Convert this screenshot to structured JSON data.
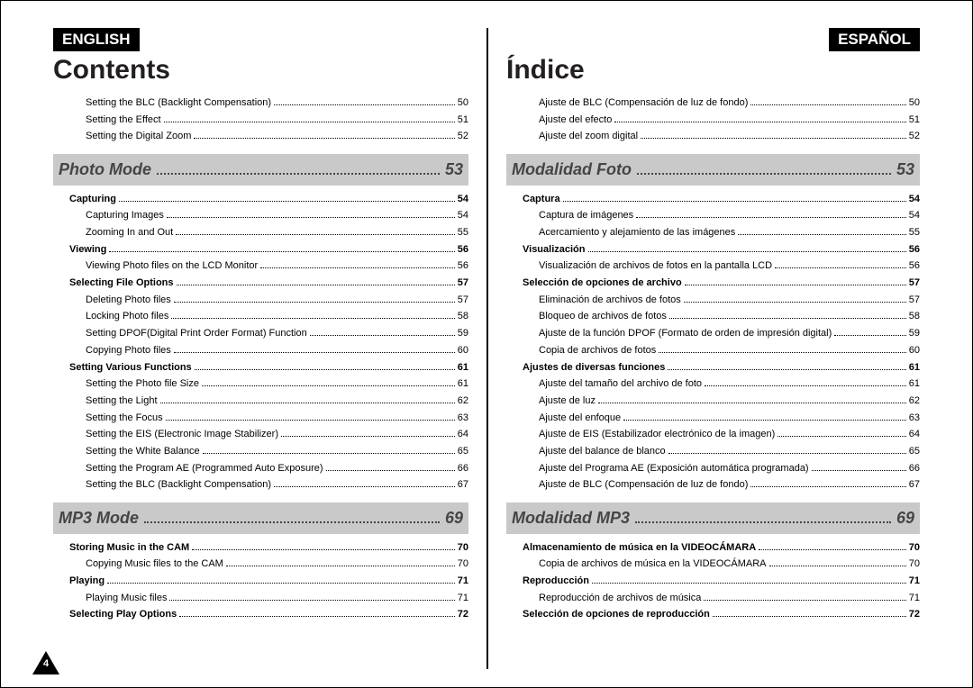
{
  "left": {
    "lang": "ENGLISH",
    "title": "Contents",
    "pageNumber": "4",
    "pre": [
      {
        "label": "Setting the BLC (Backlight Compensation)",
        "pg": "50",
        "lvl": 2
      },
      {
        "label": "Setting the Effect",
        "pg": "51",
        "lvl": 2
      },
      {
        "label": "Setting the Digital Zoom",
        "pg": "52",
        "lvl": 2
      }
    ],
    "sections": [
      {
        "title": "Photo Mode",
        "pg": "53",
        "items": [
          {
            "label": "Capturing",
            "pg": "54",
            "lvl": 1,
            "bold": true
          },
          {
            "label": "Capturing Images",
            "pg": "54",
            "lvl": 2
          },
          {
            "label": "Zooming In and Out",
            "pg": "55",
            "lvl": 2
          },
          {
            "label": "Viewing",
            "pg": "56",
            "lvl": 1,
            "bold": true
          },
          {
            "label": "Viewing Photo files on the LCD Monitor",
            "pg": "56",
            "lvl": 2
          },
          {
            "label": "Selecting File Options",
            "pg": "57",
            "lvl": 1,
            "bold": true
          },
          {
            "label": "Deleting Photo files",
            "pg": "57",
            "lvl": 2
          },
          {
            "label": "Locking Photo files",
            "pg": "58",
            "lvl": 2
          },
          {
            "label": "Setting DPOF(Digital Print Order Format) Function",
            "pg": "59",
            "lvl": 2
          },
          {
            "label": "Copying Photo files",
            "pg": "60",
            "lvl": 2
          },
          {
            "label": "Setting Various Functions",
            "pg": "61",
            "lvl": 1,
            "bold": true
          },
          {
            "label": "Setting the Photo file Size",
            "pg": "61",
            "lvl": 2
          },
          {
            "label": "Setting the Light",
            "pg": "62",
            "lvl": 2
          },
          {
            "label": "Setting the Focus",
            "pg": "63",
            "lvl": 2
          },
          {
            "label": "Setting the EIS (Electronic Image Stabilizer)",
            "pg": "64",
            "lvl": 2
          },
          {
            "label": "Setting the White Balance",
            "pg": "65",
            "lvl": 2
          },
          {
            "label": "Setting the Program AE (Programmed Auto Exposure)",
            "pg": "66",
            "lvl": 2
          },
          {
            "label": "Setting the BLC (Backlight Compensation)",
            "pg": "67",
            "lvl": 2
          }
        ]
      },
      {
        "title": "MP3 Mode",
        "pg": "69",
        "items": [
          {
            "label": "Storing Music in the CAM",
            "pg": "70",
            "lvl": 1,
            "bold": true
          },
          {
            "label": "Copying Music files to the CAM",
            "pg": "70",
            "lvl": 2
          },
          {
            "label": "Playing",
            "pg": "71",
            "lvl": 1,
            "bold": true
          },
          {
            "label": "Playing Music files",
            "pg": "71",
            "lvl": 2
          },
          {
            "label": "Selecting Play Options",
            "pg": "72",
            "lvl": 1,
            "bold": true
          }
        ]
      }
    ]
  },
  "right": {
    "lang": "ESPAÑOL",
    "title": "Índice",
    "pre": [
      {
        "label": "Ajuste de BLC (Compensación de luz de fondo)",
        "pg": "50",
        "lvl": 2
      },
      {
        "label": "Ajuste del efecto",
        "pg": "51",
        "lvl": 2
      },
      {
        "label": "Ajuste del zoom digital",
        "pg": "52",
        "lvl": 2
      }
    ],
    "sections": [
      {
        "title": "Modalidad Foto",
        "pg": "53",
        "items": [
          {
            "label": "Captura",
            "pg": "54",
            "lvl": 1,
            "bold": true
          },
          {
            "label": "Captura de imágenes",
            "pg": "54",
            "lvl": 2
          },
          {
            "label": "Acercamiento y alejamiento de las imágenes",
            "pg": "55",
            "lvl": 2
          },
          {
            "label": "Visualización",
            "pg": "56",
            "lvl": 1,
            "bold": true
          },
          {
            "label": "Visualización de archivos de fotos en la pantalla LCD",
            "pg": "56",
            "lvl": 2
          },
          {
            "label": "Selección de opciones de archivo",
            "pg": "57",
            "lvl": 1,
            "bold": true
          },
          {
            "label": "Eliminación de archivos de fotos",
            "pg": "57",
            "lvl": 2
          },
          {
            "label": "Bloqueo de archivos de fotos",
            "pg": "58",
            "lvl": 2
          },
          {
            "label": "Ajuste de la función DPOF (Formato de orden de impresión digital)",
            "pg": "59",
            "lvl": 2
          },
          {
            "label": "Copia de archivos de fotos",
            "pg": "60",
            "lvl": 2
          },
          {
            "label": "Ajustes de diversas funciones",
            "pg": "61",
            "lvl": 1,
            "bold": true
          },
          {
            "label": "Ajuste del tamaño del archivo de foto",
            "pg": "61",
            "lvl": 2
          },
          {
            "label": "Ajuste de luz",
            "pg": "62",
            "lvl": 2
          },
          {
            "label": "Ajuste del enfoque",
            "pg": "63",
            "lvl": 2
          },
          {
            "label": "Ajuste de EIS (Estabilizador electrónico de la imagen)",
            "pg": "64",
            "lvl": 2
          },
          {
            "label": "Ajuste del balance de blanco",
            "pg": "65",
            "lvl": 2
          },
          {
            "label": "Ajuste del Programa AE (Exposición automática programada)",
            "pg": "66",
            "lvl": 2
          },
          {
            "label": "Ajuste de BLC (Compensación de luz de fondo)",
            "pg": "67",
            "lvl": 2
          }
        ]
      },
      {
        "title": "Modalidad MP3",
        "pg": "69",
        "items": [
          {
            "label": "Almacenamiento de música en la VIDEOCÁMARA",
            "pg": "70",
            "lvl": 1,
            "bold": true
          },
          {
            "label": "Copia de archivos de música en la VIDEOCÁMARA",
            "pg": "70",
            "lvl": 2
          },
          {
            "label": "Reproducción",
            "pg": "71",
            "lvl": 1,
            "bold": true
          },
          {
            "label": "Reproducción de archivos de música",
            "pg": "71",
            "lvl": 2
          },
          {
            "label": "Selección de opciones de reproducción",
            "pg": "72",
            "lvl": 1,
            "bold": true
          }
        ]
      }
    ]
  }
}
